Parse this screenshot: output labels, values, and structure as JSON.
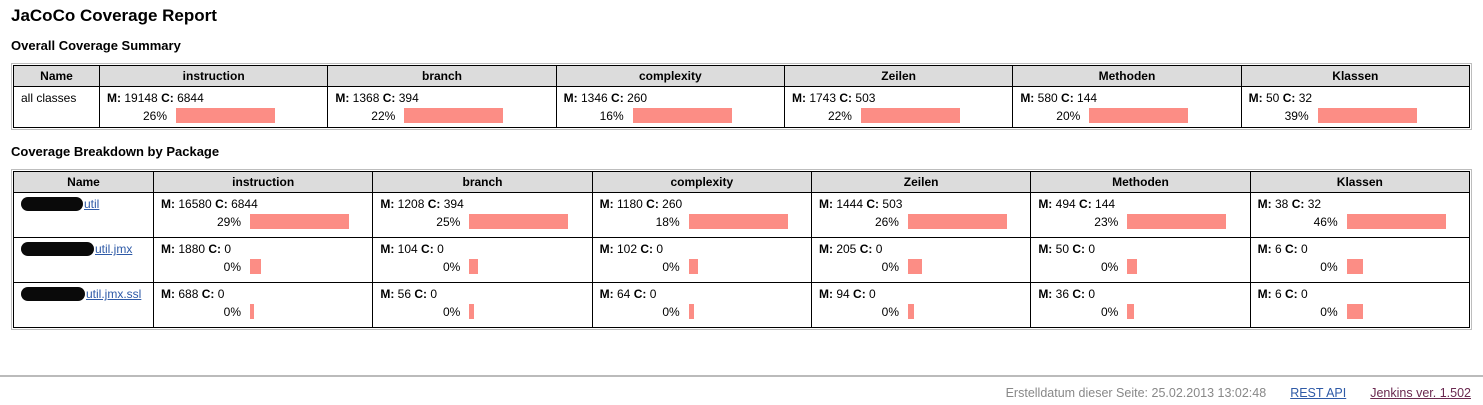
{
  "page": {
    "title": "JaCoCo Coverage Report"
  },
  "labels": {
    "missed": "M:",
    "covered": "C:"
  },
  "overall": {
    "heading": "Overall Coverage Summary",
    "columns": [
      "Name",
      "instruction",
      "branch",
      "complexity",
      "Zeilen",
      "Methoden",
      "Klassen"
    ],
    "rows": [
      {
        "name": "all classes",
        "redacted": false,
        "cells": [
          {
            "m": 19148,
            "c": 6844,
            "pct": "26%"
          },
          {
            "m": 1368,
            "c": 394,
            "pct": "22%"
          },
          {
            "m": 1346,
            "c": 260,
            "pct": "16%"
          },
          {
            "m": 1743,
            "c": 503,
            "pct": "22%"
          },
          {
            "m": 580,
            "c": 144,
            "pct": "20%"
          },
          {
            "m": 50,
            "c": 32,
            "pct": "39%"
          }
        ]
      }
    ]
  },
  "breakdown": {
    "heading": "Coverage Breakdown by Package",
    "columns": [
      "Name",
      "instruction",
      "branch",
      "complexity",
      "Zeilen",
      "Methoden",
      "Klassen"
    ],
    "rows": [
      {
        "name": "util",
        "redacted": true,
        "redact_width": 62,
        "cells": [
          {
            "m": 16580,
            "c": 6844,
            "pct": "29%"
          },
          {
            "m": 1208,
            "c": 394,
            "pct": "25%"
          },
          {
            "m": 1180,
            "c": 260,
            "pct": "18%"
          },
          {
            "m": 1444,
            "c": 503,
            "pct": "26%"
          },
          {
            "m": 494,
            "c": 144,
            "pct": "23%"
          },
          {
            "m": 38,
            "c": 32,
            "pct": "46%"
          }
        ]
      },
      {
        "name": "util.jmx",
        "redacted": true,
        "redact_width": 73,
        "cells": [
          {
            "m": 1880,
            "c": 0,
            "pct": "0%"
          },
          {
            "m": 104,
            "c": 0,
            "pct": "0%"
          },
          {
            "m": 102,
            "c": 0,
            "pct": "0%"
          },
          {
            "m": 205,
            "c": 0,
            "pct": "0%"
          },
          {
            "m": 50,
            "c": 0,
            "pct": "0%"
          },
          {
            "m": 6,
            "c": 0,
            "pct": "0%"
          }
        ]
      },
      {
        "name": "util.jmx.ssl",
        "redacted": true,
        "redact_width": 64,
        "cells": [
          {
            "m": 688,
            "c": 0,
            "pct": "0%"
          },
          {
            "m": 56,
            "c": 0,
            "pct": "0%"
          },
          {
            "m": 64,
            "c": 0,
            "pct": "0%"
          },
          {
            "m": 94,
            "c": 0,
            "pct": "0%"
          },
          {
            "m": 36,
            "c": 0,
            "pct": "0%"
          },
          {
            "m": 6,
            "c": 0,
            "pct": "0%"
          }
        ]
      }
    ]
  },
  "footer": {
    "generated": "Erstelldatum dieser Seite: 25.02.2013 13:02:48",
    "links": [
      {
        "label": "REST API"
      },
      {
        "label": "Jenkins ver. 1.502"
      }
    ]
  },
  "colors": {
    "bar": "#fc8d85",
    "header_bg": "#dcdcdc",
    "link": "#2e5aa7",
    "visited_link": "#6a2950",
    "footer_text": "#888888"
  }
}
